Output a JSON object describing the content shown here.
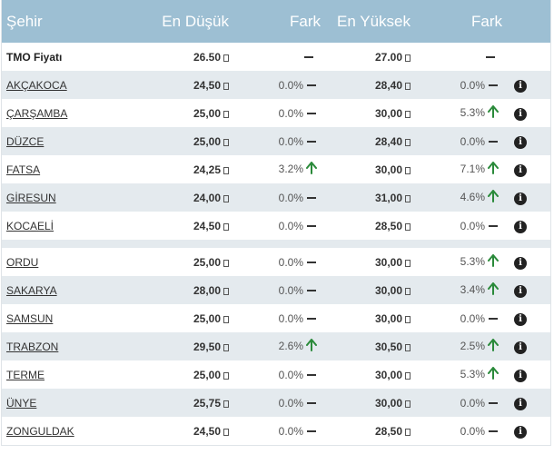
{
  "header": {
    "city": "Şehir",
    "lowest": "En Düşük",
    "diff1": "Fark",
    "highest": "En Yüksek",
    "diff2": "Fark"
  },
  "tmo": {
    "label": "TMO Fiyatı",
    "low": "26.50",
    "high": "27.00"
  },
  "rows": [
    {
      "city": "AKÇAKOCA",
      "low": "24,50",
      "low_diff": "0.0%",
      "low_trend": "flat",
      "high": "28,40",
      "high_diff": "0.0%",
      "high_trend": "flat"
    },
    {
      "city": "ÇARŞAMBA",
      "low": "25,00",
      "low_diff": "0.0%",
      "low_trend": "flat",
      "high": "30,00",
      "high_diff": "5.3%",
      "high_trend": "up"
    },
    {
      "city": "DÜZCE",
      "low": "25,00",
      "low_diff": "0.0%",
      "low_trend": "flat",
      "high": "28,40",
      "high_diff": "0.0%",
      "high_trend": "flat"
    },
    {
      "city": "FATSA",
      "low": "24,25",
      "low_diff": "3.2%",
      "low_trend": "up",
      "high": "30,00",
      "high_diff": "7.1%",
      "high_trend": "up"
    },
    {
      "city": "GİRESUN",
      "low": "24,00",
      "low_diff": "0.0%",
      "low_trend": "flat",
      "high": "31,00",
      "high_diff": "4.6%",
      "high_trend": "up"
    },
    {
      "city": "KOCAELİ",
      "low": "24,50",
      "low_diff": "0.0%",
      "low_trend": "flat",
      "high": "28,50",
      "high_diff": "0.0%",
      "high_trend": "flat"
    },
    {
      "city": "ORDU",
      "low": "25,00",
      "low_diff": "0.0%",
      "low_trend": "flat",
      "high": "30,00",
      "high_diff": "5.3%",
      "high_trend": "up"
    },
    {
      "city": "SAKARYA",
      "low": "28,00",
      "low_diff": "0.0%",
      "low_trend": "flat",
      "high": "30,00",
      "high_diff": "3.4%",
      "high_trend": "up"
    },
    {
      "city": "SAMSUN",
      "low": "25,00",
      "low_diff": "0.0%",
      "low_trend": "flat",
      "high": "30,00",
      "high_diff": "0.0%",
      "high_trend": "flat"
    },
    {
      "city": "TRABZON",
      "low": "29,50",
      "low_diff": "2.6%",
      "low_trend": "up",
      "high": "30,50",
      "high_diff": "2.5%",
      "high_trend": "up"
    },
    {
      "city": "TERME",
      "low": "25,00",
      "low_diff": "0.0%",
      "low_trend": "flat",
      "high": "30,00",
      "high_diff": "5.3%",
      "high_trend": "up"
    },
    {
      "city": "ÜNYE",
      "low": "25,75",
      "low_diff": "0.0%",
      "low_trend": "flat",
      "high": "30,00",
      "high_diff": "0.0%",
      "high_trend": "flat"
    },
    {
      "city": "ZONGULDAK",
      "low": "24,50",
      "low_diff": "0.0%",
      "low_trend": "flat",
      "high": "28,50",
      "high_diff": "0.0%",
      "high_trend": "flat"
    }
  ],
  "colors": {
    "header_bg": "#9dbfd3",
    "alt_row_bg": "#e4eaee",
    "up_arrow": "#2a8a3a"
  },
  "icons": {
    "flat": "dash-icon",
    "up": "arrow-up-icon",
    "info": "info-icon",
    "currency": "currency-icon"
  }
}
